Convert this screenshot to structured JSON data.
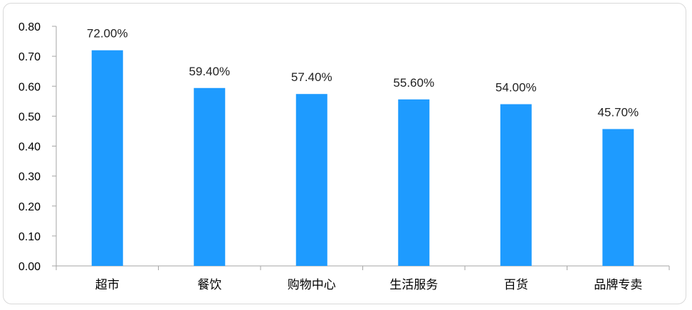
{
  "chart_data": {
    "type": "bar",
    "categories": [
      "超市",
      "餐饮",
      "购物中心",
      "生活服务",
      "百货",
      "品牌专卖"
    ],
    "values": [
      0.72,
      0.594,
      0.574,
      0.556,
      0.54,
      0.457
    ],
    "data_labels": [
      "72.00%",
      "59.40%",
      "57.40%",
      "55.60%",
      "54.00%",
      "45.70%"
    ],
    "yticks": [
      "0.00",
      "0.10",
      "0.20",
      "0.30",
      "0.40",
      "0.50",
      "0.60",
      "0.70",
      "0.80"
    ],
    "ylim": [
      0,
      0.8
    ],
    "title": "",
    "xlabel": "",
    "ylabel": "",
    "legend": "none",
    "grid": false,
    "bar_color": "#1e9bff",
    "axis_color": "#a6a6a6"
  }
}
